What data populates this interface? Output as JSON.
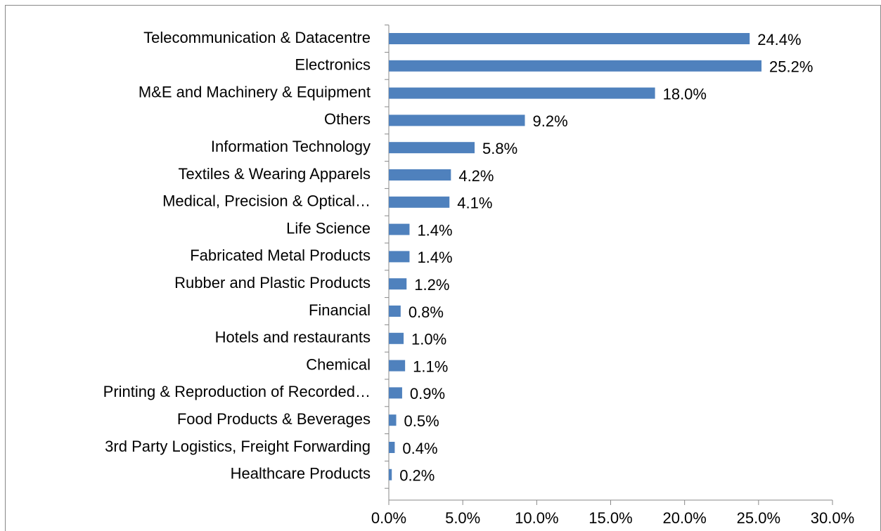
{
  "chart_data": {
    "type": "barh",
    "categories": [
      "Telecommunication & Datacentre",
      "Electronics",
      "M&E and Machinery & Equipment",
      "Others",
      "Information Technology",
      "Textiles & Wearing Apparels",
      "Medical, Precision & Optical…",
      "Life Science",
      "Fabricated Metal Products",
      "Rubber and Plastic Products",
      "Financial",
      "Hotels and restaurants",
      "Chemical",
      "Printing & Reproduction of Recorded…",
      "Food Products & Beverages",
      "3rd Party Logistics, Freight Forwarding",
      "Healthcare Products"
    ],
    "values": [
      24.4,
      25.2,
      18.0,
      9.2,
      5.8,
      4.2,
      4.1,
      1.4,
      1.4,
      1.2,
      0.8,
      1.0,
      1.1,
      0.9,
      0.5,
      0.4,
      0.2
    ],
    "value_labels": [
      "24.4%",
      "25.2%",
      "18.0%",
      "9.2%",
      "5.8%",
      "4.2%",
      "4.1%",
      "1.4%",
      "1.4%",
      "1.2%",
      "0.8%",
      "1.0%",
      "1.1%",
      "0.9%",
      "0.5%",
      "0.4%",
      "0.2%"
    ],
    "color": "#4f81bd",
    "xlim": [
      0,
      30
    ],
    "xticks": [
      {
        "value": 0,
        "label": "0.0%"
      },
      {
        "value": 5,
        "label": "5.0%"
      },
      {
        "value": 10,
        "label": "10.0%"
      },
      {
        "value": 15,
        "label": "15.0%"
      },
      {
        "value": 20,
        "label": "20.0%"
      },
      {
        "value": 25,
        "label": "25.0%"
      },
      {
        "value": 30,
        "label": "30.0%"
      }
    ],
    "grid": false
  }
}
